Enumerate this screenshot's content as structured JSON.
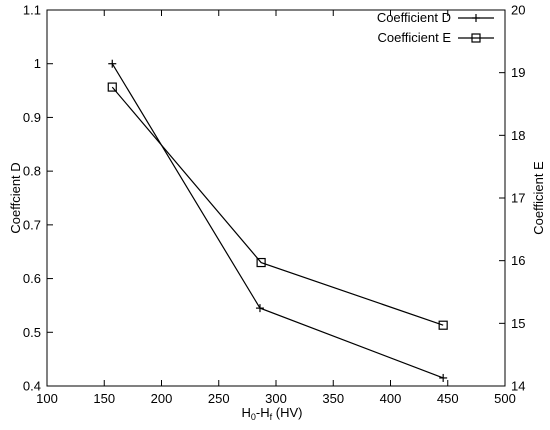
{
  "chart_data": {
    "type": "line",
    "xlabel": {
      "main": "H",
      "sub1": "0",
      "dash": "-H",
      "sub2": "f",
      "unit": " (HV)"
    },
    "ylabel_left": "Coeffcient D",
    "ylabel_right": "Coefficient E",
    "xlim": [
      100,
      500
    ],
    "ylim_left": [
      0.4,
      1.1
    ],
    "ylim_right": [
      14,
      20
    ],
    "x_ticks": [
      100,
      150,
      200,
      250,
      300,
      350,
      400,
      450,
      500
    ],
    "y_left_ticks": [
      "0.4",
      "0.5",
      "0.6",
      "0.7",
      "0.8",
      "0.9",
      "1",
      "1.1"
    ],
    "y_right_ticks": [
      "14",
      "15",
      "16",
      "17",
      "18",
      "19",
      "20"
    ],
    "grid": false,
    "legend_position": "top-right",
    "series": [
      {
        "name": "Coefficient D",
        "axis": "left",
        "marker": "plus",
        "x": [
          157,
          286,
          446
        ],
        "y": [
          1.0,
          0.545,
          0.415
        ]
      },
      {
        "name": "Coefficient E",
        "axis": "right",
        "marker": "square",
        "x": [
          157,
          287,
          446
        ],
        "y": [
          18.77,
          15.97,
          14.97
        ]
      }
    ]
  }
}
